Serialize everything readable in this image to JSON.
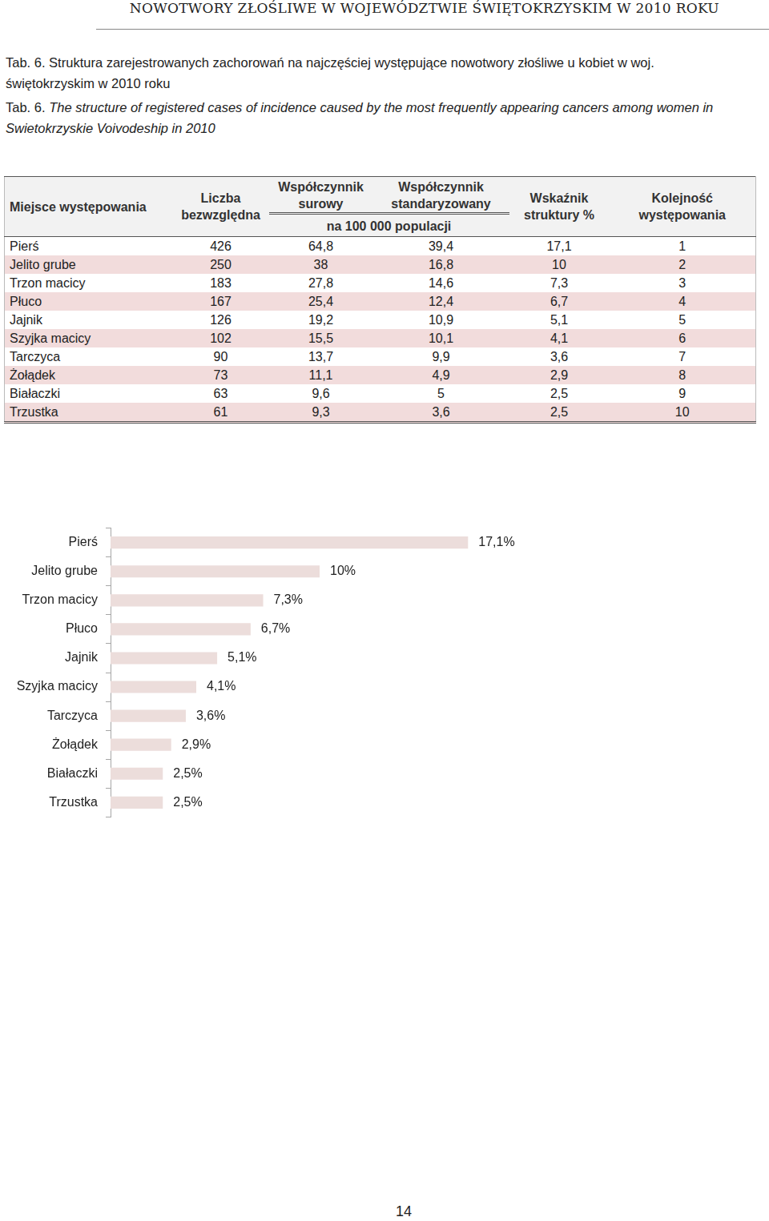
{
  "header": {
    "running_title": "NOWOTWORY ZŁOŚLIWE W WOJEWÓDZTWIE ŚWIĘTOKRZYSKIM W 2010 ROKU"
  },
  "caption": {
    "pl": "Tab. 6. Struktura zarejestrowanych zachorowań na najczęściej występujące nowotwory złośliwe u kobiet w woj. świętokrzyskim w 2010 roku",
    "en_label": "Tab. 6.",
    "en": "The structure of registered cases of incidence caused by the most frequently appearing cancers among women in Swietokrzyskie Voivodeship in 2010"
  },
  "table": {
    "columns": [
      "Miejsce występowania",
      "Liczba bezwzględna",
      "Współczynnik surowy",
      "Współczynnik standaryzowany",
      "Wskaźnik struktury %",
      "Kolejność występowania"
    ],
    "subheader": "na 100 000 populacji",
    "rows": [
      [
        "Pierś",
        "426",
        "64,8",
        "39,4",
        "17,1",
        "1"
      ],
      [
        "Jelito grube",
        "250",
        "38",
        "16,8",
        "10",
        "2"
      ],
      [
        "Trzon macicy",
        "183",
        "27,8",
        "14,6",
        "7,3",
        "3"
      ],
      [
        "Płuco",
        "167",
        "25,4",
        "12,4",
        "6,7",
        "4"
      ],
      [
        "Jajnik",
        "126",
        "19,2",
        "10,9",
        "5,1",
        "5"
      ],
      [
        "Szyjka macicy",
        "102",
        "15,5",
        "10,1",
        "4,1",
        "6"
      ],
      [
        "Tarczyca",
        "90",
        "13,7",
        "9,9",
        "3,6",
        "7"
      ],
      [
        "Żołądek",
        "73",
        "11,1",
        "4,9",
        "2,9",
        "8"
      ],
      [
        "Białaczki",
        "63",
        "9,6",
        "5",
        "2,5",
        "9"
      ],
      [
        "Trzustka",
        "61",
        "9,3",
        "3,6",
        "2,5",
        "10"
      ]
    ]
  },
  "chart_data": {
    "type": "bar",
    "orientation": "horizontal",
    "categories": [
      "Pierś",
      "Jelito grube",
      "Trzon macicy",
      "Płuco",
      "Jajnik",
      "Szyjka macicy",
      "Tarczyca",
      "Żołądek",
      "Białaczki",
      "Trzustka"
    ],
    "values": [
      17.1,
      10,
      7.3,
      6.7,
      5.1,
      4.1,
      3.6,
      2.9,
      2.5,
      2.5
    ],
    "value_labels": [
      "17,1%",
      "10%",
      "7,3%",
      "6,7%",
      "5,1%",
      "4,1%",
      "3,6%",
      "2,9%",
      "2,5%",
      "2,5%"
    ],
    "data_labels": true,
    "color": "#ecdddb",
    "xlim": [
      0,
      20
    ],
    "grid": false,
    "tick_labels": "y"
  },
  "page_number": "14"
}
